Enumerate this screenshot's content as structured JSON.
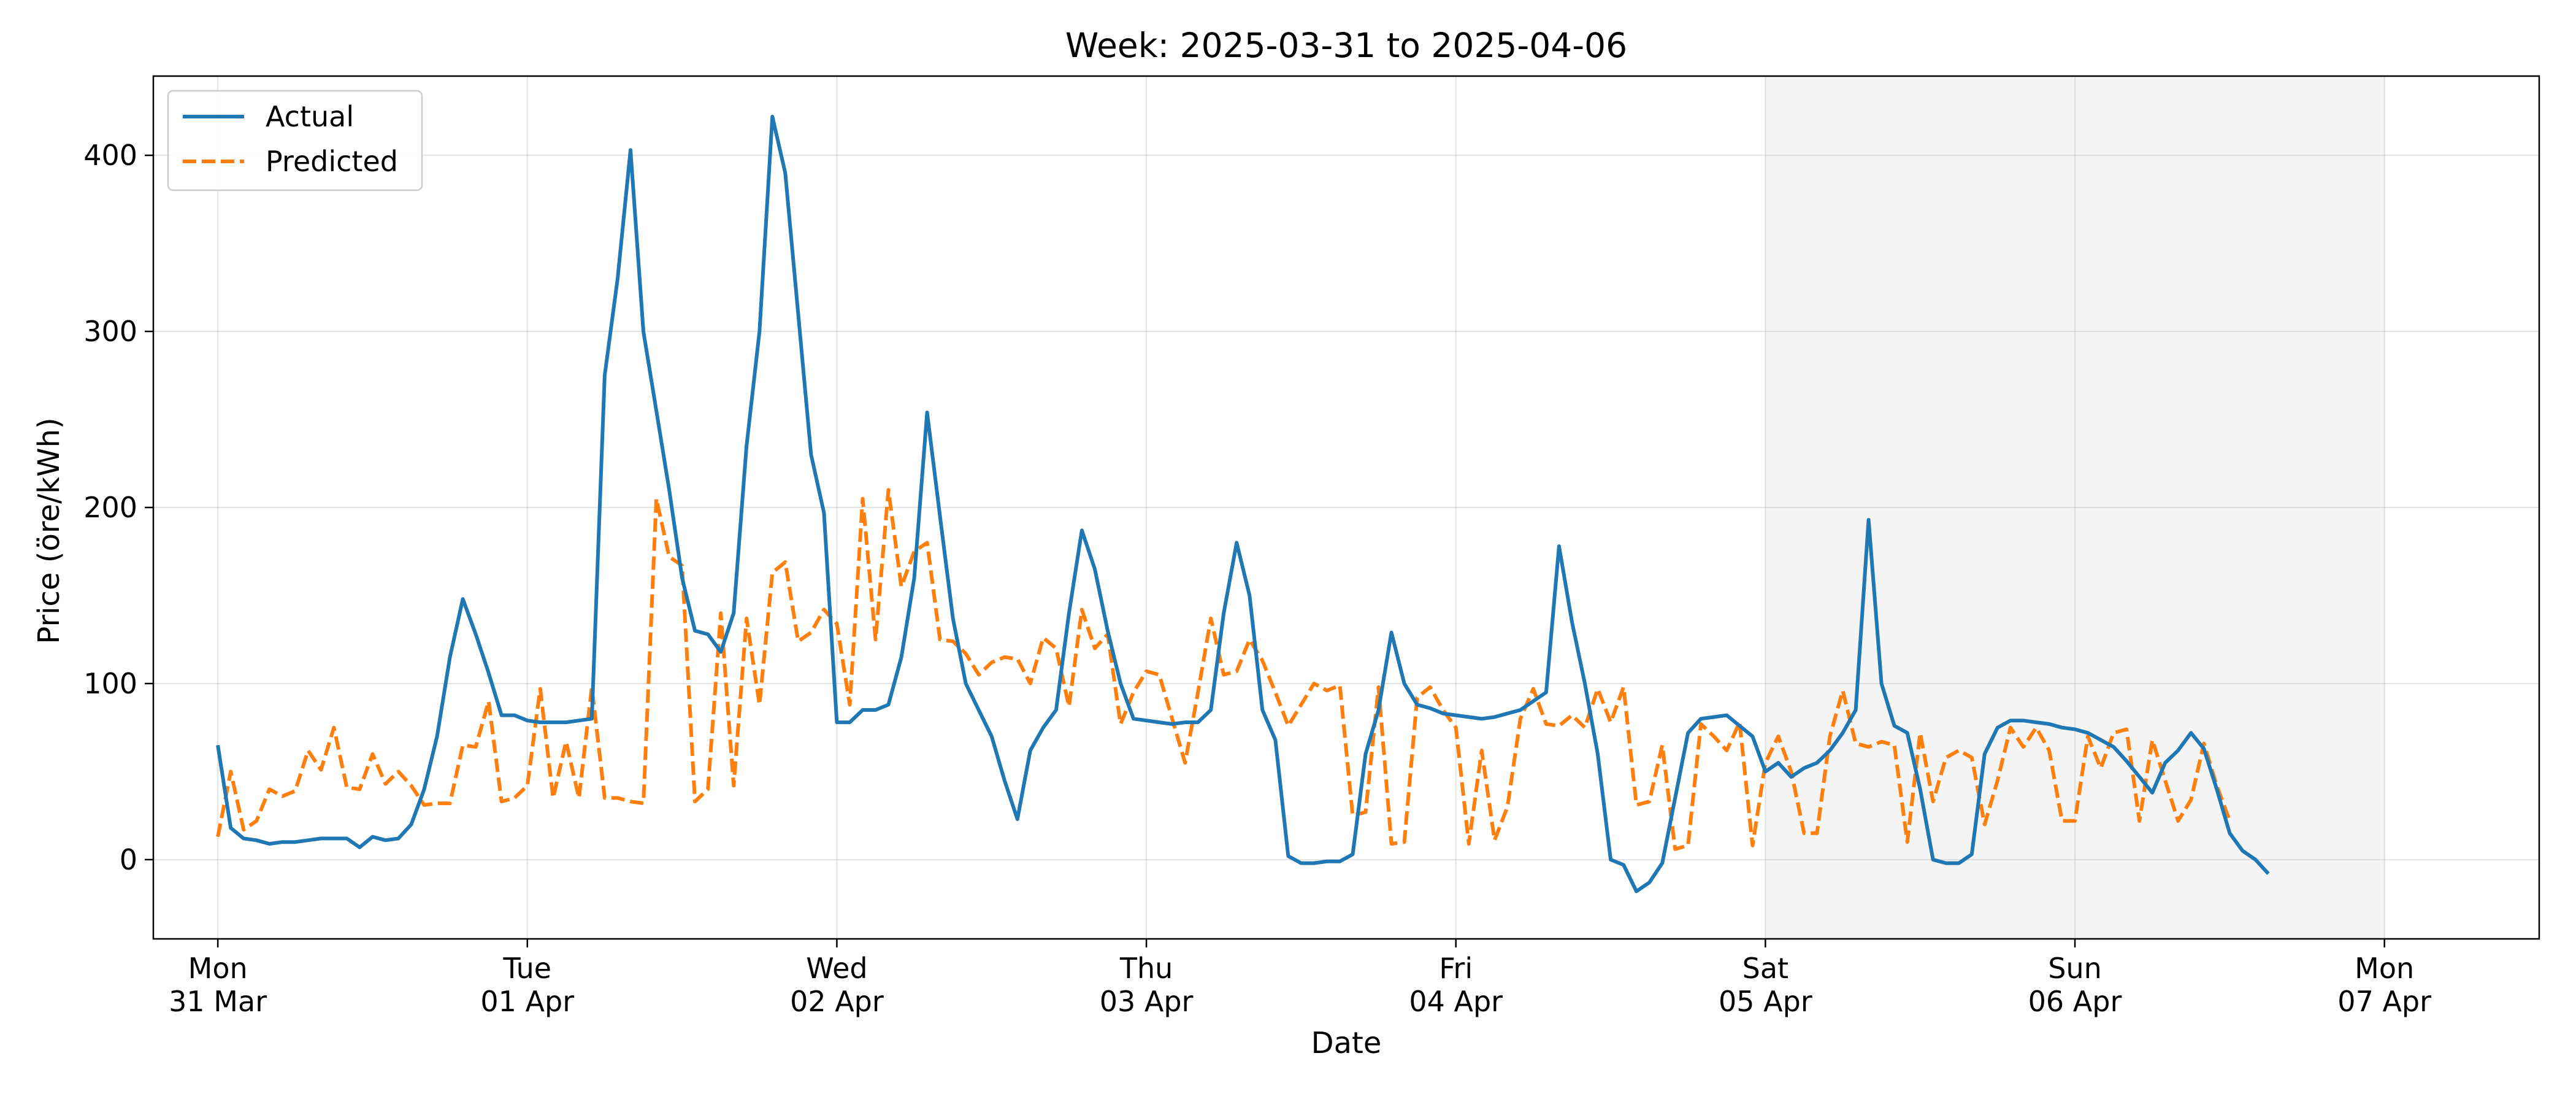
{
  "chart_data": {
    "type": "line",
    "title": "Week: 2025-03-31 to 2025-04-06",
    "xlabel": "Date",
    "ylabel": "Price (öre/kWh)",
    "xlim": [
      "2025-03-30T19:00",
      "2025-04-07T12:00"
    ],
    "ylim": [
      -45,
      445
    ],
    "yticks": [
      0,
      100,
      200,
      300,
      400
    ],
    "xticks": [
      {
        "date": "2025-03-31",
        "day": "Mon",
        "label": "31 Mar"
      },
      {
        "date": "2025-04-01",
        "day": "Tue",
        "label": "01 Apr"
      },
      {
        "date": "2025-04-02",
        "day": "Wed",
        "label": "02 Apr"
      },
      {
        "date": "2025-04-03",
        "day": "Thu",
        "label": "03 Apr"
      },
      {
        "date": "2025-04-04",
        "day": "Fri",
        "label": "04 Apr"
      },
      {
        "date": "2025-04-05",
        "day": "Sat",
        "label": "05 Apr"
      },
      {
        "date": "2025-04-06",
        "day": "Sun",
        "label": "06 Apr"
      },
      {
        "date": "2025-04-07",
        "day": "Mon",
        "label": "07 Apr"
      }
    ],
    "grid": true,
    "legend_position": "upper-left",
    "weekend_shading": {
      "from": "2025-04-05",
      "to": "2025-04-07",
      "color": "#f4f4f4"
    },
    "start": "2025-03-31T00:00",
    "interval_hours": 1,
    "series": [
      {
        "name": "Actual",
        "color": "#1f77b4",
        "style": "solid",
        "values": [
          65,
          18,
          12,
          11,
          9,
          10,
          10,
          11,
          12,
          12,
          12,
          7,
          13,
          11,
          12,
          20,
          40,
          70,
          115,
          148,
          128,
          106,
          82,
          82,
          79,
          78,
          78,
          78,
          79,
          80,
          275,
          330,
          403,
          300,
          255,
          210,
          160,
          130,
          128,
          118,
          140,
          235,
          300,
          422,
          390,
          310,
          230,
          197,
          78,
          78,
          85,
          85,
          88,
          115,
          160,
          254,
          195,
          137,
          100,
          85,
          70,
          45,
          23,
          62,
          75,
          85,
          140,
          187,
          165,
          130,
          100,
          80,
          79,
          78,
          77,
          78,
          78,
          85,
          140,
          180,
          150,
          85,
          68,
          2,
          -2,
          -2,
          -1,
          -1,
          3,
          60,
          85,
          129,
          100,
          88,
          86,
          83,
          82,
          81,
          80,
          81,
          83,
          85,
          90,
          95,
          178,
          135,
          100,
          60,
          0,
          -3,
          -18,
          -13,
          -2,
          35,
          72,
          80,
          81,
          82,
          76,
          70,
          50,
          55,
          47,
          52,
          55,
          62,
          72,
          85,
          193,
          100,
          76,
          72,
          40,
          0,
          -2,
          -2,
          3,
          60,
          75,
          79,
          79,
          78,
          77,
          75,
          74,
          72,
          68,
          64,
          56,
          47,
          38,
          55,
          62,
          72,
          63,
          40,
          15,
          5,
          0,
          -8
        ]
      },
      {
        "name": "Predicted",
        "color": "#ff7f0e",
        "style": "dashed",
        "values": [
          13,
          50,
          17,
          22,
          40,
          36,
          39,
          62,
          51,
          75,
          41,
          40,
          60,
          43,
          50,
          42,
          31,
          32,
          32,
          65,
          64,
          90,
          33,
          35,
          42,
          97,
          35,
          67,
          35,
          98,
          35,
          35,
          33,
          32,
          205,
          172,
          167,
          33,
          40,
          140,
          42,
          137,
          88,
          163,
          169,
          124,
          129,
          142,
          134,
          88,
          205,
          125,
          210,
          155,
          175,
          180,
          125,
          124,
          117,
          105,
          112,
          115,
          114,
          100,
          126,
          120,
          87,
          142,
          120,
          128,
          77,
          95,
          107,
          105,
          80,
          55,
          95,
          137,
          105,
          107,
          125,
          113,
          95,
          76,
          88,
          100,
          96,
          99,
          25,
          27,
          98,
          9,
          10,
          92,
          98,
          85,
          75,
          9,
          62,
          11,
          30,
          80,
          97,
          77,
          76,
          82,
          75,
          97,
          78,
          98,
          31,
          33,
          65,
          6,
          8,
          77,
          70,
          62,
          78,
          8,
          55,
          70,
          50,
          15,
          15,
          70,
          96,
          66,
          64,
          67,
          65,
          10,
          72,
          33,
          58,
          62,
          58,
          20,
          45,
          75,
          64,
          75,
          62,
          22,
          22,
          70,
          52,
          72,
          74,
          22,
          68,
          45,
          22,
          34,
          66,
          42,
          22
        ]
      }
    ]
  }
}
